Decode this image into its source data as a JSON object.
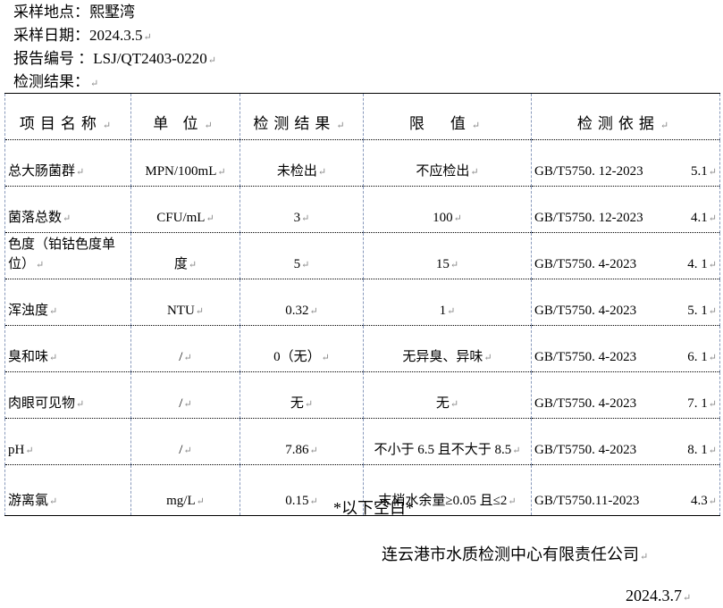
{
  "header": {
    "site_label": "采样地点：",
    "site": "熙墅湾",
    "date_label": "采样日期：",
    "date": "2024.3.5",
    "report_label": "报告编号 ：",
    "report_no": "LSJ/QT2403-0220",
    "results_label": "检测结果："
  },
  "table": {
    "columns": [
      "项目名称",
      "单 位",
      "检测结果",
      "限　值",
      "检测依据"
    ],
    "rows": [
      {
        "item": "总大肠菌群",
        "unit": "MPN/100mL",
        "result": "未检出",
        "limit": "不应检出",
        "standard": "GB/T5750. 12-2023",
        "clause": "5.1"
      },
      {
        "item": "菌落总数",
        "unit": "CFU/mL",
        "result": "3",
        "limit": "100",
        "standard": "GB/T5750. 12-2023",
        "clause": "4.1"
      },
      {
        "item": "色度（铂钴色度单位）",
        "unit": "度",
        "result": "5",
        "limit": "15",
        "standard": "GB/T5750. 4-2023",
        "clause": "4. 1"
      },
      {
        "item": "浑浊度",
        "unit": "NTU",
        "result": "0.32",
        "limit": "1",
        "standard": "GB/T5750. 4-2023",
        "clause": "5. 1"
      },
      {
        "item": "臭和味",
        "unit": "/",
        "result": "0（无）",
        "limit": "无异臭、异味",
        "standard": "GB/T5750. 4-2023",
        "clause": "6. 1"
      },
      {
        "item": "肉眼可见物",
        "unit": "/",
        "result": "无",
        "limit": "无",
        "standard": "GB/T5750. 4-2023",
        "clause": "7. 1"
      },
      {
        "item": "pH",
        "unit": "/",
        "result": "7.86",
        "limit": "不小于 6.5 且不大于 8.5",
        "standard": "GB/T5750. 4-2023",
        "clause": "8. 1"
      },
      {
        "item": "游离氯",
        "unit": "mg/L",
        "result": "0.15",
        "limit": "末梢水余量≥0.05 且≤2",
        "standard": "GB/T5750.11-2023",
        "clause": "4.3"
      }
    ]
  },
  "footer": {
    "blank_note": "*以下空白*",
    "company": "连云港市水质检测中心有限责任公司",
    "date": "2024.3.7"
  }
}
